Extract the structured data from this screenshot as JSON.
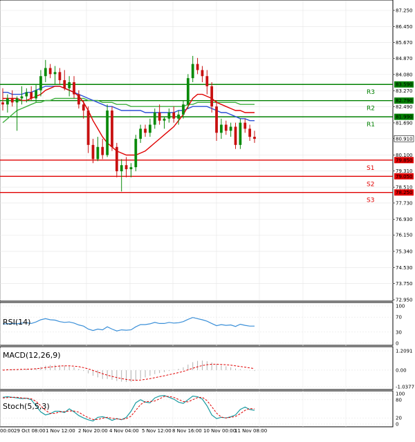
{
  "price_axis": {
    "ticks": [
      "87.250",
      "86.450",
      "85.670",
      "84.870",
      "84.080",
      "83.270",
      "82.490",
      "81.690",
      "80.910",
      "80.100",
      "79.310",
      "78.510",
      "77.730",
      "76.930",
      "76.150",
      "75.340",
      "74.530",
      "73.750",
      "72.950"
    ],
    "tick_values": [
      87.25,
      86.45,
      85.67,
      84.87,
      84.08,
      83.27,
      82.49,
      81.69,
      80.91,
      80.1,
      79.31,
      78.51,
      77.73,
      76.93,
      76.15,
      75.34,
      74.53,
      73.75,
      72.95
    ],
    "current_price": "80.910",
    "current_value": 80.91
  },
  "levels": [
    {
      "label": "R3",
      "price": "83.590",
      "value": 83.59,
      "color": "#008000"
    },
    {
      "label": "R2",
      "price": "82.790",
      "value": 82.79,
      "color": "#008000"
    },
    {
      "label": "R1",
      "price": "81.990",
      "value": 81.99,
      "color": "#008000"
    },
    {
      "label": "S1",
      "price": "79.850",
      "value": 79.85,
      "color": "#e00000"
    },
    {
      "label": "S2",
      "price": "79.050",
      "value": 79.05,
      "color": "#e00000"
    },
    {
      "label": "S3",
      "price": "78.250",
      "value": 78.25,
      "color": "#e00000"
    }
  ],
  "x_axis": {
    "labels": [
      "00:00",
      "29 Oct 08:00",
      "1 Nov 12:00",
      "2 Nov 20:00",
      "4 Nov 04:00",
      "5 Nov 12:00",
      "8 Nov 16:00",
      "10 Nov 00:00",
      "11 Nov 08:00"
    ]
  },
  "indicators": {
    "rsi": {
      "title": "RSI(14)",
      "ticks": [
        "100",
        "70",
        "30",
        "0"
      ],
      "tick_values": [
        100,
        70,
        30,
        0
      ]
    },
    "macd": {
      "title": "MACD(12,26,9)",
      "ticks": [
        "1.2091",
        "0.00",
        "-1.0377"
      ],
      "tick_values": [
        1.2091,
        0,
        -1.0377
      ]
    },
    "stoch": {
      "title": "Stoch(5,5,3)",
      "ticks": [
        "100",
        "80",
        "20",
        "0"
      ],
      "tick_values": [
        100,
        80,
        20,
        0
      ]
    }
  },
  "colors": {
    "bull": "#0a8a0a",
    "bear": "#c81010",
    "ma_fast": "#e00000",
    "ma_mid": "#2a4fd6",
    "ma_slow": "#40b040",
    "rsi": "#3a8fd8",
    "macd_signal": "#e00000",
    "macd_hist": "#b0b0b0",
    "stoch_k": "#1a9aa0",
    "stoch_d": "#e00000"
  },
  "chart_data": {
    "type": "candlestick",
    "symbol": "",
    "candles": [
      {
        "o": 82.7,
        "h": 83.4,
        "l": 82.3,
        "c": 82.6
      },
      {
        "o": 82.6,
        "h": 83.1,
        "l": 82.2,
        "c": 82.9
      },
      {
        "o": 82.9,
        "h": 83.3,
        "l": 82.5,
        "c": 82.7
      },
      {
        "o": 82.7,
        "h": 83.0,
        "l": 81.3,
        "c": 82.9
      },
      {
        "o": 82.9,
        "h": 83.5,
        "l": 82.6,
        "c": 83.0
      },
      {
        "o": 83.0,
        "h": 83.4,
        "l": 82.7,
        "c": 83.2
      },
      {
        "o": 83.2,
        "h": 83.5,
        "l": 82.8,
        "c": 82.9
      },
      {
        "o": 82.9,
        "h": 83.6,
        "l": 82.7,
        "c": 83.3
      },
      {
        "o": 83.3,
        "h": 84.3,
        "l": 83.0,
        "c": 84.0
      },
      {
        "o": 84.0,
        "h": 84.8,
        "l": 83.7,
        "c": 84.4
      },
      {
        "o": 84.4,
        "h": 84.6,
        "l": 83.9,
        "c": 84.1
      },
      {
        "o": 84.1,
        "h": 84.5,
        "l": 83.6,
        "c": 84.2
      },
      {
        "o": 84.2,
        "h": 84.4,
        "l": 83.6,
        "c": 83.8
      },
      {
        "o": 83.8,
        "h": 84.3,
        "l": 83.3,
        "c": 83.4
      },
      {
        "o": 83.4,
        "h": 84.0,
        "l": 83.0,
        "c": 83.7
      },
      {
        "o": 83.7,
        "h": 84.0,
        "l": 82.9,
        "c": 83.1
      },
      {
        "o": 83.1,
        "h": 83.3,
        "l": 82.4,
        "c": 82.6
      },
      {
        "o": 82.6,
        "h": 82.8,
        "l": 81.9,
        "c": 82.3
      },
      {
        "o": 82.3,
        "h": 82.5,
        "l": 80.2,
        "c": 80.6
      },
      {
        "o": 80.6,
        "h": 80.9,
        "l": 79.7,
        "c": 79.9
      },
      {
        "o": 79.9,
        "h": 81.0,
        "l": 79.8,
        "c": 80.5
      },
      {
        "o": 80.5,
        "h": 80.9,
        "l": 79.9,
        "c": 80.1
      },
      {
        "o": 80.1,
        "h": 82.6,
        "l": 80.0,
        "c": 82.3
      },
      {
        "o": 82.3,
        "h": 82.5,
        "l": 80.3,
        "c": 80.5
      },
      {
        "o": 80.5,
        "h": 80.7,
        "l": 79.0,
        "c": 79.3
      },
      {
        "o": 79.3,
        "h": 79.9,
        "l": 78.3,
        "c": 79.6
      },
      {
        "o": 79.6,
        "h": 80.0,
        "l": 79.0,
        "c": 79.4
      },
      {
        "o": 79.4,
        "h": 79.7,
        "l": 79.0,
        "c": 79.5
      },
      {
        "o": 79.5,
        "h": 81.1,
        "l": 79.3,
        "c": 80.9
      },
      {
        "o": 80.9,
        "h": 81.6,
        "l": 80.7,
        "c": 81.4
      },
      {
        "o": 81.4,
        "h": 81.6,
        "l": 81.0,
        "c": 81.2
      },
      {
        "o": 81.2,
        "h": 81.9,
        "l": 81.0,
        "c": 81.6
      },
      {
        "o": 81.6,
        "h": 82.4,
        "l": 81.4,
        "c": 82.2
      },
      {
        "o": 82.2,
        "h": 82.6,
        "l": 81.6,
        "c": 81.8
      },
      {
        "o": 81.8,
        "h": 82.0,
        "l": 81.4,
        "c": 81.9
      },
      {
        "o": 81.9,
        "h": 82.4,
        "l": 81.7,
        "c": 82.2
      },
      {
        "o": 82.2,
        "h": 82.5,
        "l": 81.7,
        "c": 81.9
      },
      {
        "o": 81.9,
        "h": 82.3,
        "l": 81.6,
        "c": 82.1
      },
      {
        "o": 82.1,
        "h": 82.8,
        "l": 81.9,
        "c": 82.6
      },
      {
        "o": 82.6,
        "h": 84.1,
        "l": 82.4,
        "c": 83.9
      },
      {
        "o": 83.9,
        "h": 85.0,
        "l": 83.7,
        "c": 84.6
      },
      {
        "o": 84.6,
        "h": 84.9,
        "l": 84.1,
        "c": 84.3
      },
      {
        "o": 84.3,
        "h": 84.5,
        "l": 83.7,
        "c": 84.0
      },
      {
        "o": 84.0,
        "h": 84.3,
        "l": 83.1,
        "c": 83.5
      },
      {
        "o": 83.5,
        "h": 83.7,
        "l": 82.2,
        "c": 82.5
      },
      {
        "o": 82.5,
        "h": 82.8,
        "l": 80.8,
        "c": 81.2
      },
      {
        "o": 81.2,
        "h": 81.9,
        "l": 80.9,
        "c": 81.6
      },
      {
        "o": 81.6,
        "h": 81.8,
        "l": 81.1,
        "c": 81.3
      },
      {
        "o": 81.3,
        "h": 81.7,
        "l": 81.0,
        "c": 81.5
      },
      {
        "o": 81.5,
        "h": 81.7,
        "l": 80.4,
        "c": 80.6
      },
      {
        "o": 80.6,
        "h": 81.9,
        "l": 80.4,
        "c": 81.7
      },
      {
        "o": 81.7,
        "h": 81.9,
        "l": 81.2,
        "c": 81.4
      },
      {
        "o": 81.4,
        "h": 81.6,
        "l": 80.8,
        "c": 81.0
      },
      {
        "o": 81.0,
        "h": 81.3,
        "l": 80.7,
        "c": 80.9
      }
    ],
    "ma_fast": [
      82.9,
      82.9,
      82.9,
      82.9,
      82.8,
      82.8,
      82.9,
      83.0,
      83.1,
      83.3,
      83.4,
      83.5,
      83.5,
      83.4,
      83.3,
      83.2,
      83.0,
      82.7,
      82.3,
      81.8,
      81.4,
      81.0,
      80.7,
      80.5,
      80.3,
      80.2,
      80.1,
      80.1,
      80.1,
      80.2,
      80.3,
      80.5,
      80.7,
      80.9,
      81.1,
      81.3,
      81.5,
      81.8,
      82.1,
      82.5,
      82.9,
      83.1,
      83.1,
      83.0,
      82.9,
      82.7,
      82.6,
      82.5,
      82.4,
      82.3,
      82.3,
      82.2,
      82.2,
      82.2
    ],
    "ma_mid": [
      83.2,
      83.2,
      83.1,
      83.1,
      83.1,
      83.2,
      83.2,
      83.3,
      83.4,
      83.5,
      83.5,
      83.5,
      83.5,
      83.4,
      83.3,
      83.2,
      83.1,
      83.0,
      82.9,
      82.8,
      82.7,
      82.6,
      82.5,
      82.5,
      82.4,
      82.3,
      82.3,
      82.3,
      82.3,
      82.3,
      82.2,
      82.2,
      82.2,
      82.2,
      82.2,
      82.2,
      82.2,
      82.3,
      82.3,
      82.4,
      82.5,
      82.5,
      82.5,
      82.5,
      82.4,
      82.3,
      82.2,
      82.2,
      82.1,
      82.0,
      81.9,
      81.9,
      81.8,
      81.8
    ],
    "ma_slow": [
      81.7,
      81.9,
      82.1,
      82.3,
      82.4,
      82.5,
      82.6,
      82.7,
      82.7,
      82.8,
      82.8,
      82.9,
      82.9,
      82.9,
      82.9,
      82.9,
      82.9,
      82.9,
      82.8,
      82.8,
      82.8,
      82.7,
      82.7,
      82.7,
      82.6,
      82.6,
      82.6,
      82.5,
      82.5,
      82.5,
      82.5,
      82.5,
      82.5,
      82.5,
      82.5,
      82.5,
      82.5,
      82.5,
      82.5,
      82.6,
      82.6,
      82.7,
      82.7,
      82.7,
      82.7,
      82.7,
      82.7,
      82.7,
      82.7,
      82.7,
      82.6,
      82.6,
      82.6,
      82.6
    ],
    "rsi": [
      52,
      52,
      53,
      52,
      54,
      55,
      53,
      57,
      63,
      66,
      63,
      62,
      58,
      56,
      57,
      54,
      49,
      46,
      38,
      34,
      38,
      36,
      44,
      38,
      33,
      36,
      35,
      36,
      44,
      50,
      50,
      52,
      56,
      53,
      53,
      56,
      54,
      55,
      58,
      64,
      69,
      66,
      63,
      59,
      53,
      47,
      50,
      48,
      49,
      45,
      51,
      48,
      46,
      46
    ],
    "macd_hist": [
      0.05,
      0.06,
      0.06,
      0.05,
      0.06,
      0.08,
      0.09,
      0.12,
      0.2,
      0.28,
      0.32,
      0.33,
      0.32,
      0.29,
      0.24,
      0.18,
      0.08,
      -0.05,
      -0.2,
      -0.35,
      -0.45,
      -0.55,
      -0.55,
      -0.6,
      -0.68,
      -0.72,
      -0.74,
      -0.73,
      -0.66,
      -0.55,
      -0.45,
      -0.35,
      -0.25,
      -0.18,
      -0.12,
      -0.05,
      0.02,
      0.08,
      0.18,
      0.35,
      0.5,
      0.58,
      0.6,
      0.56,
      0.48,
      0.38,
      0.3,
      0.24,
      0.18,
      0.1,
      0.06,
      0.02,
      -0.02,
      -0.05
    ],
    "macd_signal": [
      0.0,
      0.02,
      0.03,
      0.04,
      0.05,
      0.06,
      0.07,
      0.09,
      0.12,
      0.16,
      0.2,
      0.23,
      0.26,
      0.27,
      0.27,
      0.25,
      0.22,
      0.16,
      0.08,
      -0.02,
      -0.12,
      -0.22,
      -0.31,
      -0.39,
      -0.46,
      -0.53,
      -0.58,
      -0.62,
      -0.63,
      -0.62,
      -0.58,
      -0.53,
      -0.47,
      -0.41,
      -0.35,
      -0.28,
      -0.22,
      -0.15,
      -0.08,
      0.02,
      0.12,
      0.21,
      0.29,
      0.34,
      0.37,
      0.37,
      0.36,
      0.34,
      0.31,
      0.27,
      0.23,
      0.19,
      0.14,
      0.1
    ],
    "stoch_k": [
      88,
      90,
      88,
      86,
      84,
      85,
      80,
      60,
      40,
      30,
      34,
      42,
      42,
      38,
      50,
      40,
      28,
      20,
      14,
      10,
      22,
      24,
      20,
      12,
      18,
      14,
      22,
      42,
      70,
      80,
      72,
      70,
      86,
      92,
      94,
      88,
      82,
      72,
      68,
      80,
      92,
      90,
      82,
      60,
      30,
      18,
      22,
      20,
      24,
      30,
      48,
      56,
      48,
      45
    ],
    "stoch_d": [
      86,
      87,
      88,
      88,
      86,
      85,
      83,
      75,
      60,
      45,
      35,
      35,
      40,
      41,
      43,
      43,
      39,
      29,
      21,
      15,
      15,
      19,
      22,
      19,
      17,
      15,
      18,
      26,
      45,
      64,
      74,
      74,
      76,
      83,
      91,
      91,
      88,
      81,
      74,
      73,
      80,
      87,
      88,
      77,
      57,
      36,
      23,
      20,
      22,
      25,
      34,
      45,
      51,
      50
    ]
  }
}
